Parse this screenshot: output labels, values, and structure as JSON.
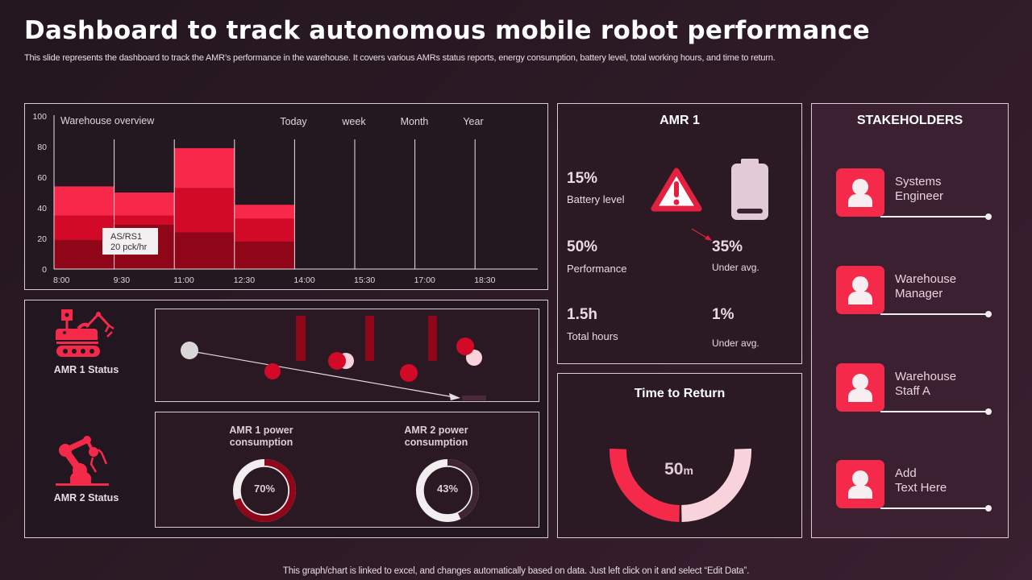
{
  "header": {
    "title": "Dashboard to track autonomous mobile robot performance",
    "subtitle": "This slide represents the dashboard to track the AMR’s performance in the warehouse. It covers various AMRs  status reports, energy consumption, battery level, total working hours, and time to return."
  },
  "footer": {
    "note": "This graph/chart is linked to excel,  and changes automatically based on data. Just left click on it and select “Edit Data”."
  },
  "chart_data": {
    "type": "bar",
    "title": "Warehouse overview",
    "categories": [
      "8:00",
      "9:30",
      "11:00",
      "12:30"
    ],
    "x_ticks": [
      "8:00",
      "9:30",
      "11:00",
      "12:30",
      "14:00",
      "15:30",
      "17:00",
      "18:30"
    ],
    "y_ticks": [
      "0",
      "20",
      "40",
      "60",
      "80",
      "100"
    ],
    "ylim": [
      0,
      100
    ],
    "period_labels": [
      "Today",
      "week",
      "Month",
      "Year"
    ],
    "stacked_levels": [
      {
        "name": "low",
        "color": "#8e0618",
        "values": [
          19,
          29,
          24,
          18
        ]
      },
      {
        "name": "mid",
        "color": "#d20a28",
        "values": [
          35,
          35,
          53,
          33
        ]
      },
      {
        "name": "top",
        "color": "#f7284a",
        "values": [
          54,
          50,
          79,
          42
        ]
      }
    ],
    "annotation": {
      "line1": "AS/RS1",
      "line2": "20 pck/hr"
    },
    "grid": false
  },
  "amr1": {
    "title": "AMR 1",
    "battery_value": "15%",
    "battery_label": "Battery level",
    "performance_value": "50%",
    "performance_label": "Performance",
    "under_avg_value_1": "35%",
    "under_avg_label_1": "Under avg.",
    "hours_value": "1.5h",
    "hours_label": "Total hours",
    "under_avg_value_2": "1%",
    "under_avg_label_2": "Under avg."
  },
  "time_to_return": {
    "title": "Time to Return",
    "value": "50",
    "unit": "m",
    "fraction": 0.5,
    "colors": {
      "filled": "#f5294a",
      "remaining": "#f9d3dc"
    }
  },
  "stakeholders": {
    "title": "STAKEHOLDERS",
    "items": [
      {
        "line1": "Systems",
        "line2": "Engineer"
      },
      {
        "line1": "Warehouse",
        "line2": "Manager"
      },
      {
        "line1": "Warehouse",
        "line2": "Staff A"
      },
      {
        "line1": "Add",
        "line2": "Text Here"
      }
    ]
  },
  "status": {
    "amr1_label": "AMR 1 Status",
    "amr2_label": "AMR 2 Status"
  },
  "power": {
    "amr1": {
      "line1": "AMR 1 power",
      "line2": "consumption",
      "value": "70%",
      "percent": 70,
      "color": "#8e0618"
    },
    "amr2": {
      "line1": "AMR 2 power",
      "line2": "consumption",
      "value": "43%",
      "percent": 43,
      "color": "#3f2431"
    }
  },
  "colors": {
    "accent": "#f5294a",
    "dark_red": "#8e0618",
    "red": "#d20a28",
    "light_pink": "#f9d3dc"
  }
}
